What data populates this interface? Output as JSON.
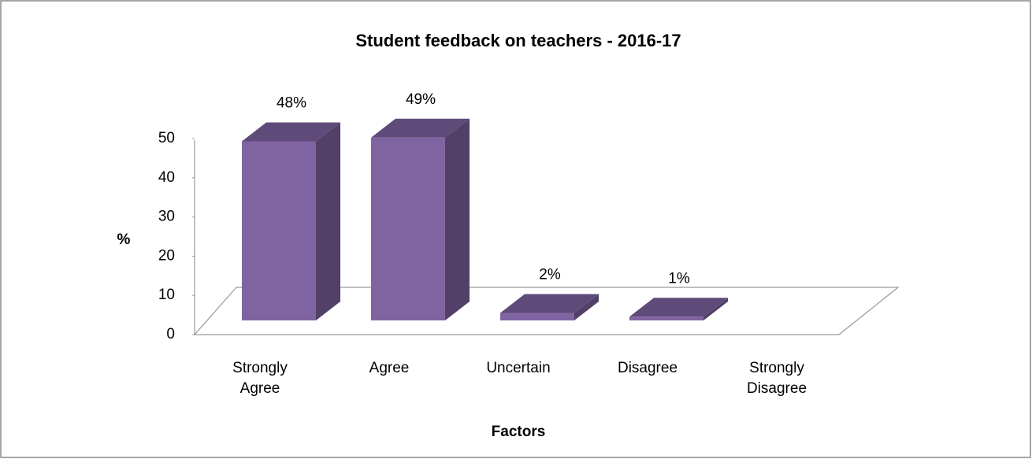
{
  "chart_data": {
    "type": "bar3d",
    "title": "Student feedback on teachers - 2016-17",
    "x_label": "Factors",
    "y_label": "%",
    "categories": [
      "Strongly Agree",
      "Agree",
      "Uncertain",
      "Disagree",
      "Strongly Disagree"
    ],
    "values": [
      48,
      49,
      2,
      1,
      null
    ],
    "value_labels": [
      "48%",
      "49%",
      "2%",
      "1%",
      null
    ],
    "color": "#8064a2",
    "ylim": [
      0,
      50
    ],
    "yticks": [
      0,
      10,
      20,
      30,
      40,
      50
    ],
    "grid": false
  }
}
